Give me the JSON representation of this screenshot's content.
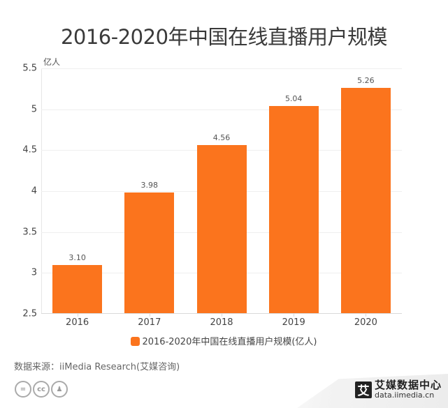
{
  "title": "2016-2020年中国在线直播用户规模",
  "unit": "亿人",
  "legend": {
    "label": "2016-2020年中国在线直播用户规模(亿人)",
    "color": "#fb741d"
  },
  "source": "数据来源：iiMedia Research(艾媒咨询)",
  "license_icons": [
    "equals-icon",
    "cc-icon",
    "person-icon"
  ],
  "license_labels": {
    "equals": "=",
    "cc": "cc",
    "person": "♟"
  },
  "brand": {
    "logo": "艾",
    "name": "艾媒数据中心",
    "url": "data.iimedia.cn"
  },
  "yticks": [
    "5.5",
    "5",
    "4.5",
    "4",
    "3.5",
    "3",
    "2.5"
  ],
  "chart_data": {
    "type": "bar",
    "title": "2016-2020年中国在线直播用户规模",
    "categories": [
      "2016",
      "2017",
      "2018",
      "2019",
      "2020"
    ],
    "series": [
      {
        "name": "2016-2020年中国在线直播用户规模(亿人)",
        "values": [
          3.1,
          3.98,
          4.56,
          5.04,
          5.26
        ],
        "labels": [
          "3.10",
          "3.98",
          "4.56",
          "5.04",
          "5.26"
        ],
        "color": "#fb741d"
      }
    ],
    "xlabel": "",
    "ylabel": "亿人",
    "ylim": [
      2.5,
      5.5
    ],
    "yticks": [
      2.5,
      3,
      3.5,
      4,
      4.5,
      5,
      5.5
    ],
    "grid": true,
    "legend_position": "bottom"
  }
}
